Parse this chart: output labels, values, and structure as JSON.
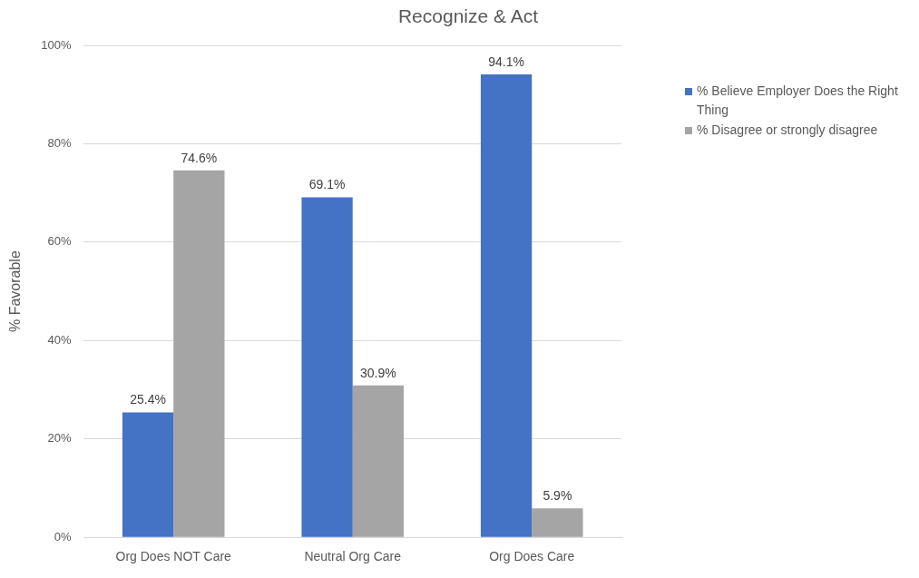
{
  "chart_data": {
    "type": "bar",
    "title": "Recognize & Act",
    "ylabel": "% Favorable",
    "categories": [
      "Org Does NOT Care",
      "Neutral Org Care",
      "Org Does Care"
    ],
    "series": [
      {
        "name": "% Believe Employer Does the Right Thing",
        "color": "#4472c4",
        "values": [
          25.4,
          69.1,
          94.1
        ],
        "value_labels": [
          "25.4%",
          "69.1%",
          "94.1%"
        ]
      },
      {
        "name": "% Disagree or strongly disagree",
        "color": "#a5a5a5",
        "values": [
          74.6,
          30.9,
          5.9
        ],
        "value_labels": [
          "74.6%",
          "30.9%",
          "5.9%"
        ]
      }
    ],
    "ylim": [
      0,
      100
    ],
    "yticks": [
      {
        "value": 0,
        "label": "0%"
      },
      {
        "value": 20,
        "label": "20%"
      },
      {
        "value": 40,
        "label": "40%"
      },
      {
        "value": 60,
        "label": "60%"
      },
      {
        "value": 80,
        "label": "80%"
      },
      {
        "value": 100,
        "label": "100%"
      }
    ],
    "grid": "y",
    "legend": "top right"
  }
}
